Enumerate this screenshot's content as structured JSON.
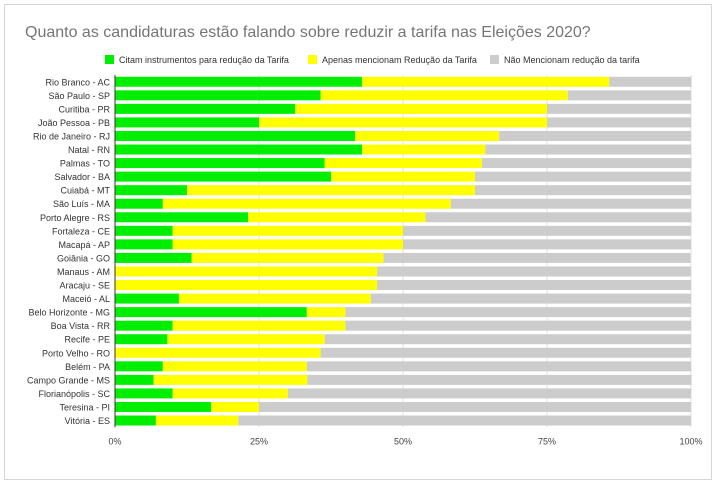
{
  "chart_data": {
    "type": "bar",
    "orientation": "horizontal",
    "stacked": true,
    "title": "Quanto as candidaturas estão falando sobre reduzir a tarifa nas Eleições 2020?",
    "xlabel": "",
    "ylabel": "",
    "xlim": [
      0,
      100
    ],
    "x_ticks": [
      "0%",
      "25%",
      "50%",
      "75%",
      "100%"
    ],
    "grid": true,
    "legend_position": "top",
    "categories": [
      "Rio Branco - AC",
      "São Paulo - SP",
      "Curitiba - PR",
      "João Pessoa - PB",
      "Rio de Janeiro - RJ",
      "Natal - RN",
      "Palmas - TO",
      "Salvador - BA",
      "Cuiabá - MT",
      "São Luís - MA",
      "Porto Alegre - RS",
      "Fortaleza - CE",
      "Macapá - AP",
      "Goiânia - GO",
      "Manaus - AM",
      "Aracaju - SE",
      "Maceió - AL",
      "Belo Horizonte - MG",
      "Boa Vista - RR",
      "Recife - PE",
      "Porto Velho - RO",
      "Belém - PA",
      "Campo Grande - MS",
      "Florianópolis - SC",
      "Teresina - PI",
      "Vitória - ES"
    ],
    "series": [
      {
        "name": "Citam instrumentos para redução da Tarifa",
        "color": "#00ee00",
        "values": [
          42.9,
          35.7,
          31.3,
          25,
          41.7,
          42.9,
          36.4,
          37.5,
          12.5,
          8.3,
          23.1,
          10,
          10,
          13.3,
          0,
          0,
          11.1,
          33.3,
          10,
          9.1,
          0,
          8.3,
          6.7,
          10,
          16.7,
          7.1
        ]
      },
      {
        "name": "Apenas mencionam Redução da Tarifa",
        "color": "#ffff00",
        "values": [
          42.9,
          42.9,
          43.7,
          50,
          25,
          21.4,
          27.3,
          25,
          50,
          50,
          30.8,
          40,
          40,
          33.3,
          45.5,
          45.5,
          33.3,
          6.7,
          30,
          27.3,
          35.7,
          25,
          26.7,
          20,
          8.3,
          14.3
        ]
      },
      {
        "name": "Não Mencionam redução da tarifa",
        "color": "#cccccc",
        "values": [
          14.3,
          21.4,
          25,
          25,
          33.3,
          35.7,
          36.4,
          37.5,
          37.5,
          41.7,
          46.2,
          50,
          50,
          53.3,
          54.5,
          54.5,
          55.6,
          60,
          60,
          63.6,
          64.3,
          66.7,
          66.7,
          70,
          75,
          78.6
        ]
      }
    ]
  }
}
